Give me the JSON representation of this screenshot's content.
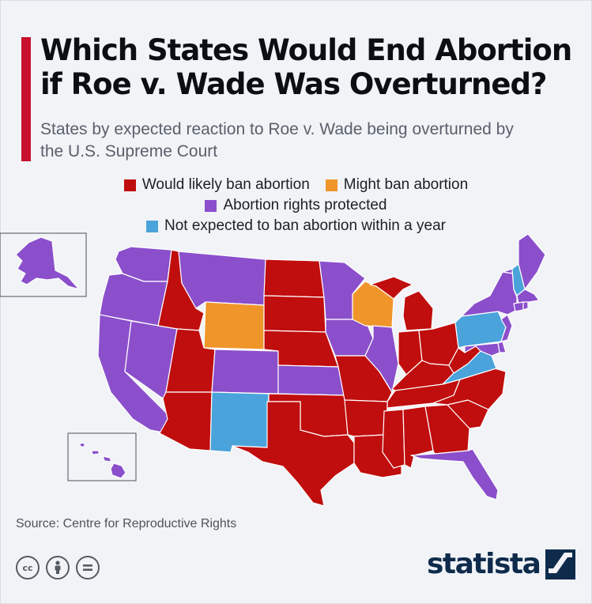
{
  "header": {
    "title": "Which States Would End Abortion if Roe v. Wade Was Overturned?",
    "subtitle": "States by expected reaction to Roe v. Wade being overturned by the U.S. Supreme Court"
  },
  "colors": {
    "ban": "#c00d0d",
    "might": "#f0952a",
    "protected": "#8b4fcb",
    "not_expected": "#4aa3da",
    "accent": "#c8102e"
  },
  "legend": [
    {
      "key": "ban",
      "label": "Would likely ban abortion"
    },
    {
      "key": "might",
      "label": "Might ban abortion"
    },
    {
      "key": "protected",
      "label": "Abortion rights protected"
    },
    {
      "key": "not_expected",
      "label": "Not expected to ban abortion within a year"
    }
  ],
  "chart_data": {
    "type": "choropleth",
    "categories": [
      "ban",
      "might",
      "protected",
      "not_expected"
    ],
    "states": {
      "WA": "protected",
      "OR": "protected",
      "CA": "protected",
      "NV": "protected",
      "ID": "ban",
      "MT": "protected",
      "WY": "might",
      "UT": "ban",
      "AZ": "ban",
      "CO": "protected",
      "NM": "not_expected",
      "ND": "ban",
      "SD": "ban",
      "NE": "ban",
      "KS": "protected",
      "OK": "ban",
      "TX": "ban",
      "MN": "protected",
      "IA": "protected",
      "MO": "ban",
      "AR": "ban",
      "LA": "ban",
      "WI": "might",
      "IL": "protected",
      "MI": "ban",
      "IN": "ban",
      "OH": "ban",
      "KY": "ban",
      "TN": "ban",
      "MS": "ban",
      "AL": "ban",
      "GA": "ban",
      "FL": "protected",
      "SC": "ban",
      "NC": "ban",
      "VA": "not_expected",
      "WV": "ban",
      "PA": "not_expected",
      "NY": "protected",
      "VT": "protected",
      "NH": "not_expected",
      "ME": "protected",
      "MA": "protected",
      "RI": "protected",
      "CT": "protected",
      "NJ": "protected",
      "DE": "protected",
      "MD": "protected",
      "AK": "protected",
      "HI": "protected"
    }
  },
  "footer": {
    "source": "Source: Centre for Reproductive Rights",
    "cc_icons": [
      "cc-icon",
      "attribution-icon",
      "no-derivatives-icon"
    ],
    "logo": "statista"
  }
}
